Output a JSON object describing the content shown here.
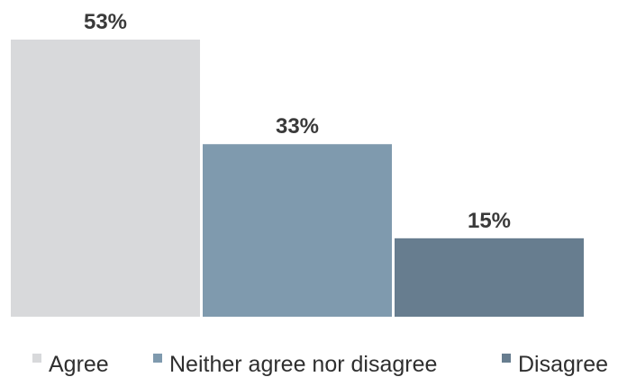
{
  "chart_data": {
    "type": "bar",
    "categories": [
      "Agree",
      "Neither agree nor disagree",
      "Disagree"
    ],
    "values": [
      53,
      33,
      15
    ],
    "value_labels": [
      "53%",
      "33%",
      "15%"
    ],
    "colors": [
      "#d8d9db",
      "#7f9aae",
      "#677d8f"
    ],
    "ylim": [
      0,
      53
    ],
    "grid": false,
    "legend_placement": "bottom",
    "title": "",
    "xlabel": "",
    "ylabel": ""
  }
}
